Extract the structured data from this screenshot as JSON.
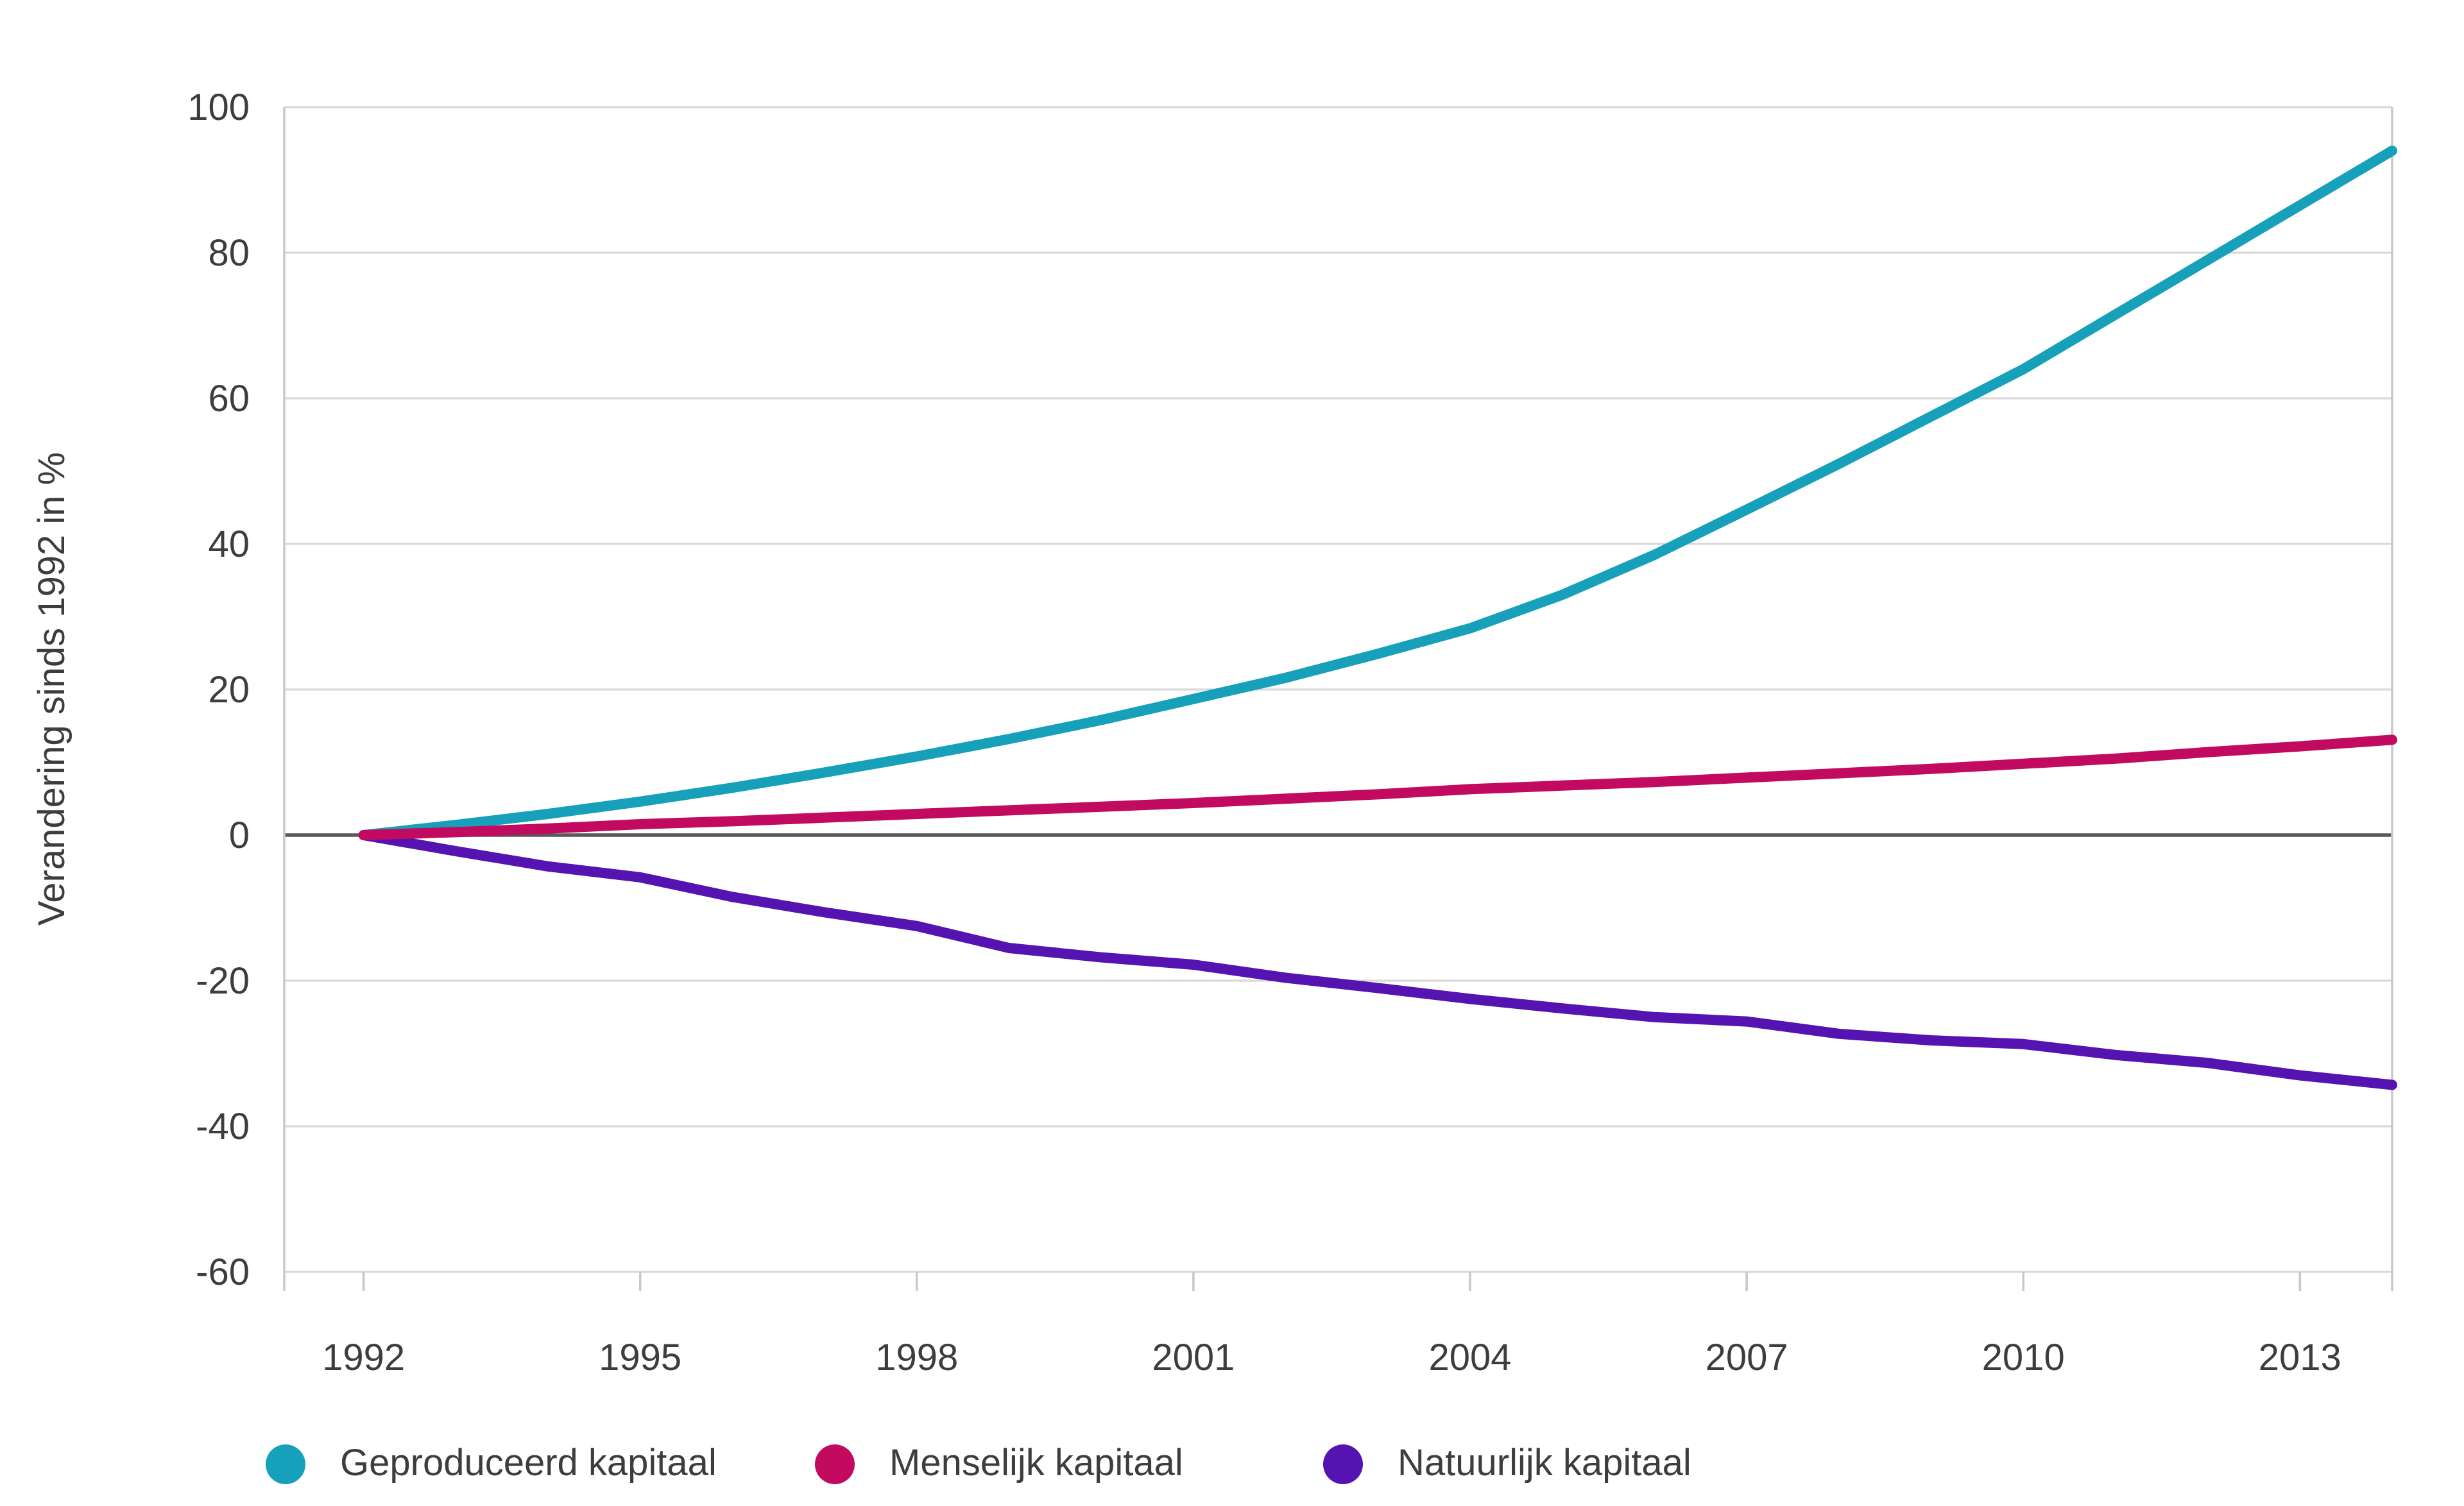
{
  "chart_data": {
    "type": "line",
    "title": "",
    "xlabel": "",
    "ylabel": "Verandering sinds 1992 in %",
    "x": [
      1992,
      1993,
      1994,
      1995,
      1996,
      1997,
      1998,
      1999,
      2000,
      2001,
      2002,
      2003,
      2004,
      2005,
      2006,
      2007,
      2008,
      2009,
      2010,
      2011,
      2012,
      2013,
      2014
    ],
    "x_ticks": [
      1992,
      1995,
      1998,
      2001,
      2004,
      2007,
      2010,
      2013
    ],
    "y_ticks": [
      100,
      80,
      60,
      40,
      20,
      0,
      -20,
      -40,
      -60
    ],
    "xlim": [
      1991.14,
      2014
    ],
    "ylim": [
      -60,
      100
    ],
    "grid": "horizontal-only",
    "zero_line_value": 0,
    "legend_position": "bottom-left",
    "series": [
      {
        "name": "Geproduceerd kapitaal",
        "color": "#16a0ba",
        "values": [
          0,
          1.4,
          2.9,
          4.6,
          6.5,
          8.6,
          10.8,
          13.2,
          15.8,
          18.7,
          21.6,
          24.9,
          28.4,
          33.0,
          38.5,
          44.7,
          51.0,
          57.5,
          64.0,
          71.5,
          79.0,
          86.5,
          94.0
        ]
      },
      {
        "name": "Menselijk kapitaal",
        "color": "#c10a60",
        "values": [
          0,
          0.4,
          0.9,
          1.5,
          1.9,
          2.4,
          2.9,
          3.4,
          3.9,
          4.4,
          5.0,
          5.6,
          6.3,
          6.8,
          7.3,
          7.9,
          8.5,
          9.1,
          9.8,
          10.5,
          11.4,
          12.2,
          13.1
        ]
      },
      {
        "name": "Natuurlijk kapitaal",
        "color": "#5513b1",
        "values": [
          0,
          -2.2,
          -4.3,
          -5.8,
          -8.5,
          -10.6,
          -12.5,
          -15.5,
          -16.8,
          -17.8,
          -19.6,
          -21.0,
          -22.5,
          -23.8,
          -25.0,
          -25.6,
          -27.3,
          -28.2,
          -28.7,
          -30.2,
          -31.3,
          -33.0,
          -34.3
        ]
      }
    ]
  },
  "styles": {
    "background": "#ffffff",
    "grid_color": "#d9d9d9",
    "zero_line_color": "#595959",
    "axis_color": "#c9c9c9",
    "text_color": "#3d3d3d"
  }
}
